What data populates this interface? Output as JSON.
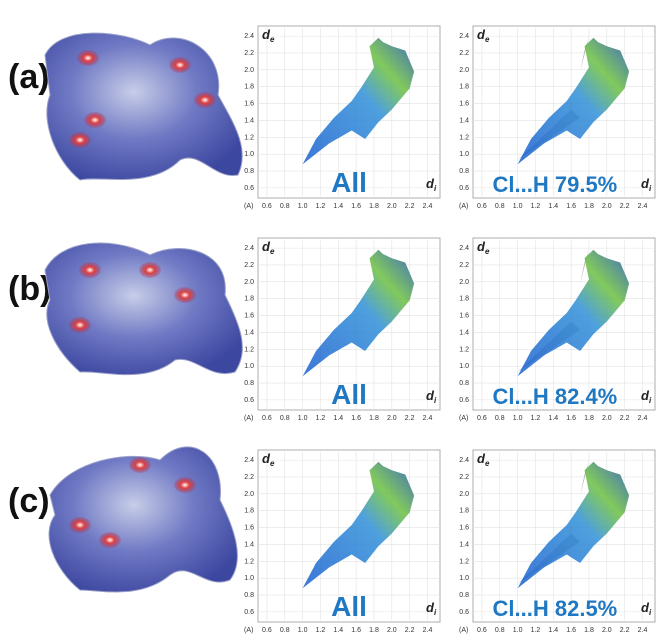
{
  "panels": [
    {
      "label": "(a)",
      "plots": [
        {
          "label": "All"
        },
        {
          "label": "Cl...H 79.5%"
        }
      ]
    },
    {
      "label": "(b)",
      "plots": [
        {
          "label": "All"
        },
        {
          "label": "Cl...H 82.4%"
        }
      ]
    },
    {
      "label": "(c)",
      "plots": [
        {
          "label": "All"
        },
        {
          "label": "Cl...H 82.5%"
        }
      ]
    }
  ],
  "axis": {
    "y_label": "d",
    "y_sub": "e",
    "x_label": "d",
    "x_sub": "i",
    "unit": "(A)",
    "yticks": [
      "0.6",
      "0.8",
      "1.0",
      "1.2",
      "1.4",
      "1.6",
      "1.8",
      "2.0",
      "2.2",
      "2.4"
    ],
    "xticks": [
      "0.6",
      "0.8",
      "1.0",
      "1.2",
      "1.4",
      "1.6",
      "1.8",
      "2.0",
      "2.2",
      "2.4"
    ]
  }
}
